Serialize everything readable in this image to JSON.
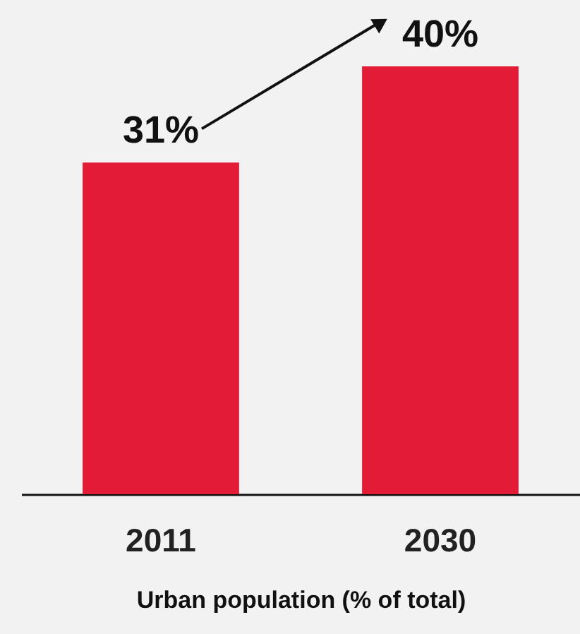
{
  "chart_data": {
    "type": "bar",
    "xlabel": "Urban population (% of total)",
    "categories": [
      "2011",
      "2030"
    ],
    "values": [
      31,
      40
    ],
    "color": "#e31b37",
    "value_labels": [
      "31%",
      "40%"
    ],
    "tick_labels": "x"
  }
}
